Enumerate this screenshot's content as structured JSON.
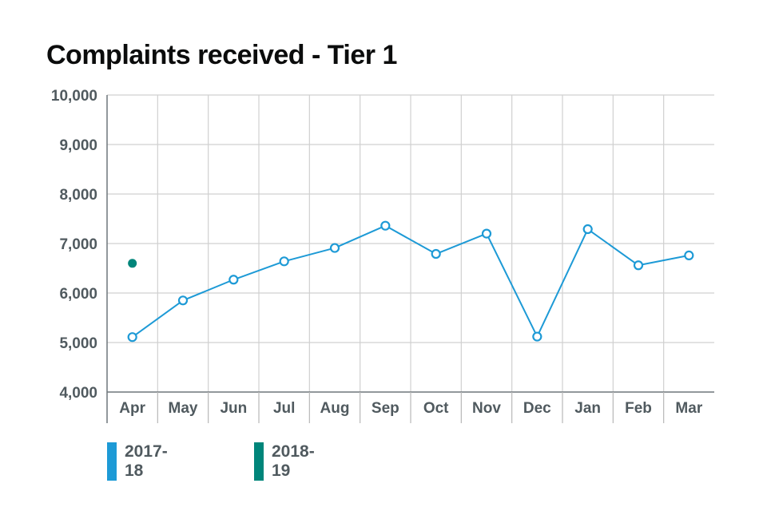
{
  "chart_data": {
    "type": "line",
    "title": "Complaints received - Tier 1",
    "categories": [
      "Apr",
      "May",
      "Jun",
      "Jul",
      "Aug",
      "Sep",
      "Oct",
      "Nov",
      "Dec",
      "Jan",
      "Feb",
      "Mar"
    ],
    "y_ticks": [
      "4,000",
      "5,000",
      "6,000",
      "7,000",
      "8,000",
      "9,000",
      "10,000"
    ],
    "ylim": [
      4000,
      10000
    ],
    "grid": true,
    "legend_position": "bottom-left",
    "series": [
      {
        "name": "2017-18",
        "color": "#1d9ad6",
        "marker": "hollow-circle",
        "values": [
          5110,
          5850,
          6270,
          6640,
          6910,
          7360,
          6790,
          7200,
          5120,
          7290,
          6560,
          6760
        ]
      },
      {
        "name": "2018-19",
        "color": "#00857a",
        "marker": "filled-circle",
        "values": [
          6600,
          null,
          null,
          null,
          null,
          null,
          null,
          null,
          null,
          null,
          null,
          null
        ]
      }
    ]
  }
}
